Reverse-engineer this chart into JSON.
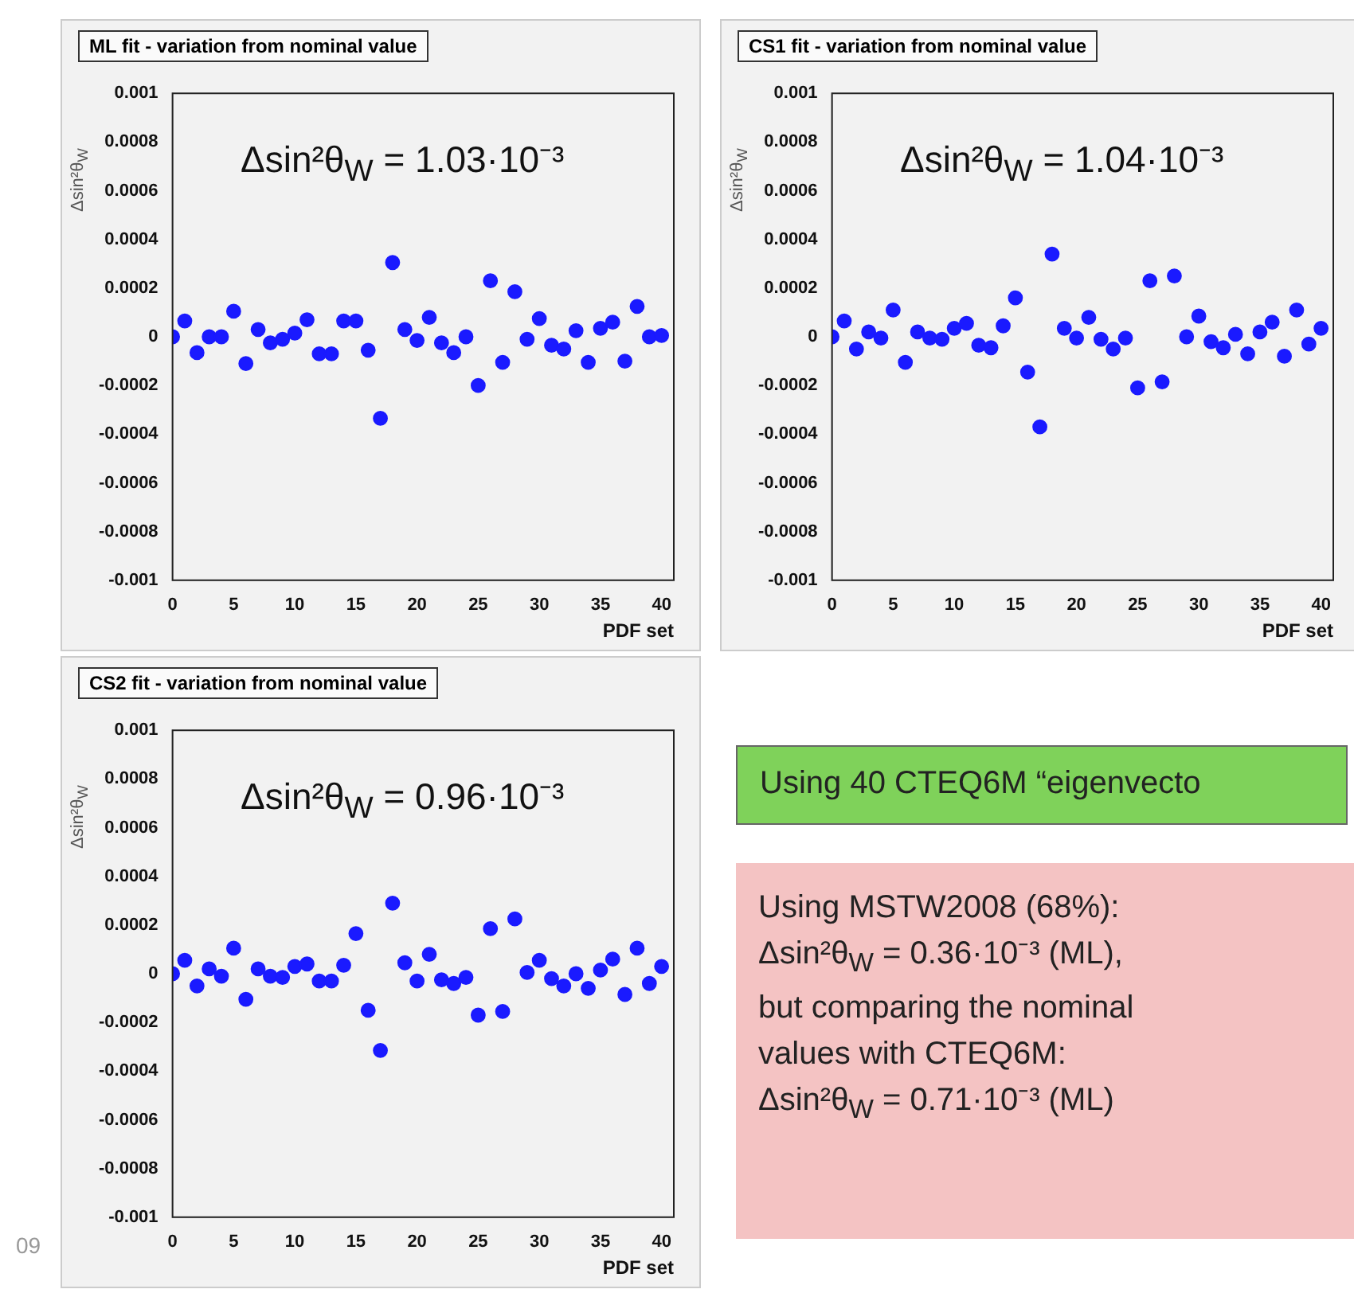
{
  "chart_data": [
    {
      "type": "scatter",
      "title": "ML fit - variation from nominal value",
      "xlabel": "PDF set",
      "ylabel": "Δsin²θ$_{W}$",
      "marker": "circle",
      "x": [
        0,
        1,
        2,
        3,
        4,
        5,
        6,
        7,
        8,
        9,
        10,
        11,
        12,
        13,
        14,
        15,
        16,
        17,
        18,
        19,
        20,
        21,
        22,
        23,
        24,
        25,
        26,
        27,
        28,
        29,
        30,
        31,
        32,
        33,
        34,
        35,
        36,
        37,
        38,
        39,
        40
      ],
      "series": [
        {
          "color": "#1a1aff",
          "values": [
            0,
            6.5e-05,
            -6.5e-05,
            0,
            0,
            0.000105,
            -0.00011,
            3e-05,
            -2.5e-05,
            -1e-05,
            1.5e-05,
            7e-05,
            -7e-05,
            -7e-05,
            6.5e-05,
            6.5e-05,
            -5.5e-05,
            -0.000335,
            0.000305,
            3e-05,
            -1.5e-05,
            8e-05,
            -2.5e-05,
            -6.5e-05,
            0,
            -0.0002,
            0.00023,
            -0.000105,
            0.000185,
            -1e-05,
            7.5e-05,
            -3.5e-05,
            -5e-05,
            2.5e-05,
            -0.000105,
            3.5e-05,
            6e-05,
            -0.0001,
            0.000125,
            0,
            5e-06
          ]
        }
      ],
      "xlim": [
        0,
        41
      ],
      "xticks": [
        0,
        5,
        10,
        15,
        20,
        25,
        30,
        35,
        40
      ],
      "ylim": [
        -0.001,
        0.001
      ],
      "yticks": [
        -0.001,
        -0.0008,
        -0.0006,
        -0.0004,
        -0.0002,
        0,
        0.0002,
        0.0004,
        0.0006,
        0.0008,
        0.001
      ],
      "annotations": [
        "Δsin²θ$_{W}$ = 1.03·10⁻³"
      ]
    },
    {
      "type": "scatter",
      "title": "CS1 fit - variation from nominal value",
      "xlabel": "PDF set",
      "ylabel": "Δsin²θ$_{W}$",
      "marker": "circle",
      "x": [
        0,
        1,
        2,
        3,
        4,
        5,
        6,
        7,
        8,
        9,
        10,
        11,
        12,
        13,
        14,
        15,
        16,
        17,
        18,
        19,
        20,
        21,
        22,
        23,
        24,
        25,
        26,
        27,
        28,
        29,
        30,
        31,
        32,
        33,
        34,
        35,
        36,
        37,
        38,
        39,
        40
      ],
      "series": [
        {
          "color": "#1a1aff",
          "values": [
            0,
            6.5e-05,
            -5e-05,
            2e-05,
            -5e-06,
            0.00011,
            -0.000105,
            2e-05,
            -5e-06,
            -1e-05,
            3.5e-05,
            5.5e-05,
            -3.5e-05,
            -4.5e-05,
            4.5e-05,
            0.00016,
            -0.000145,
            -0.00037,
            0.00034,
            3.5e-05,
            -5e-06,
            8e-05,
            -1e-05,
            -5e-05,
            -5e-06,
            -0.00021,
            0.00023,
            -0.000185,
            0.00025,
            0,
            8.5e-05,
            -2e-05,
            -4.5e-05,
            1e-05,
            -7e-05,
            2e-05,
            6e-05,
            -8e-05,
            0.00011,
            -3e-05,
            3.5e-05
          ]
        }
      ],
      "xlim": [
        0,
        41
      ],
      "xticks": [
        0,
        5,
        10,
        15,
        20,
        25,
        30,
        35,
        40
      ],
      "ylim": [
        -0.001,
        0.001
      ],
      "yticks": [
        -0.001,
        -0.0008,
        -0.0006,
        -0.0004,
        -0.0002,
        0,
        0.0002,
        0.0004,
        0.0006,
        0.0008,
        0.001
      ],
      "annotations": [
        "Δsin²θ$_{W}$ = 1.04·10⁻³"
      ]
    },
    {
      "type": "scatter",
      "title": "CS2 fit - variation from nominal value",
      "xlabel": "PDF set",
      "ylabel": "Δsin²θ$_{W}$",
      "marker": "circle",
      "x": [
        0,
        1,
        2,
        3,
        4,
        5,
        6,
        7,
        8,
        9,
        10,
        11,
        12,
        13,
        14,
        15,
        16,
        17,
        18,
        19,
        20,
        21,
        22,
        23,
        24,
        25,
        26,
        27,
        28,
        29,
        30,
        31,
        32,
        33,
        34,
        35,
        36,
        37,
        38,
        39,
        40
      ],
      "series": [
        {
          "color": "#1a1aff",
          "values": [
            0,
            5.5e-05,
            -5e-05,
            2e-05,
            -1e-05,
            0.000105,
            -0.000105,
            2e-05,
            -1e-05,
            -1.5e-05,
            3e-05,
            4e-05,
            -3e-05,
            -3e-05,
            3.5e-05,
            0.000165,
            -0.00015,
            -0.000315,
            0.00029,
            4.5e-05,
            -3e-05,
            8e-05,
            -2.5e-05,
            -4e-05,
            -1.5e-05,
            -0.00017,
            0.000185,
            -0.000155,
            0.000225,
            5e-06,
            5.5e-05,
            -2e-05,
            -5e-05,
            0,
            -6e-05,
            1.5e-05,
            6e-05,
            -8.5e-05,
            0.000105,
            -4e-05,
            3e-05
          ]
        }
      ],
      "xlim": [
        0,
        41
      ],
      "xticks": [
        0,
        5,
        10,
        15,
        20,
        25,
        30,
        35,
        40
      ],
      "ylim": [
        -0.001,
        0.001
      ],
      "yticks": [
        -0.001,
        -0.0008,
        -0.0006,
        -0.0004,
        -0.0002,
        0,
        0.0002,
        0.0004,
        0.0006,
        0.0008,
        0.001
      ],
      "annotations": [
        "Δsin²θ$_{W}$ = 0.96·10⁻³",
        "09"
      ]
    },
    {
      "type": "other",
      "annotations": [
        "Using 40 CTEQ6M “eigenvecto",
        "Using MSTW2008 (68%):",
        "Δsin²θ$_{W}$ = 0.36·10⁻³ (ML),",
        "but comparing the nominal",
        "values with CTEQ6M:",
        "Δsin²θ$_{W}$ = 0.71·10⁻³ (ML)"
      ]
    }
  ]
}
